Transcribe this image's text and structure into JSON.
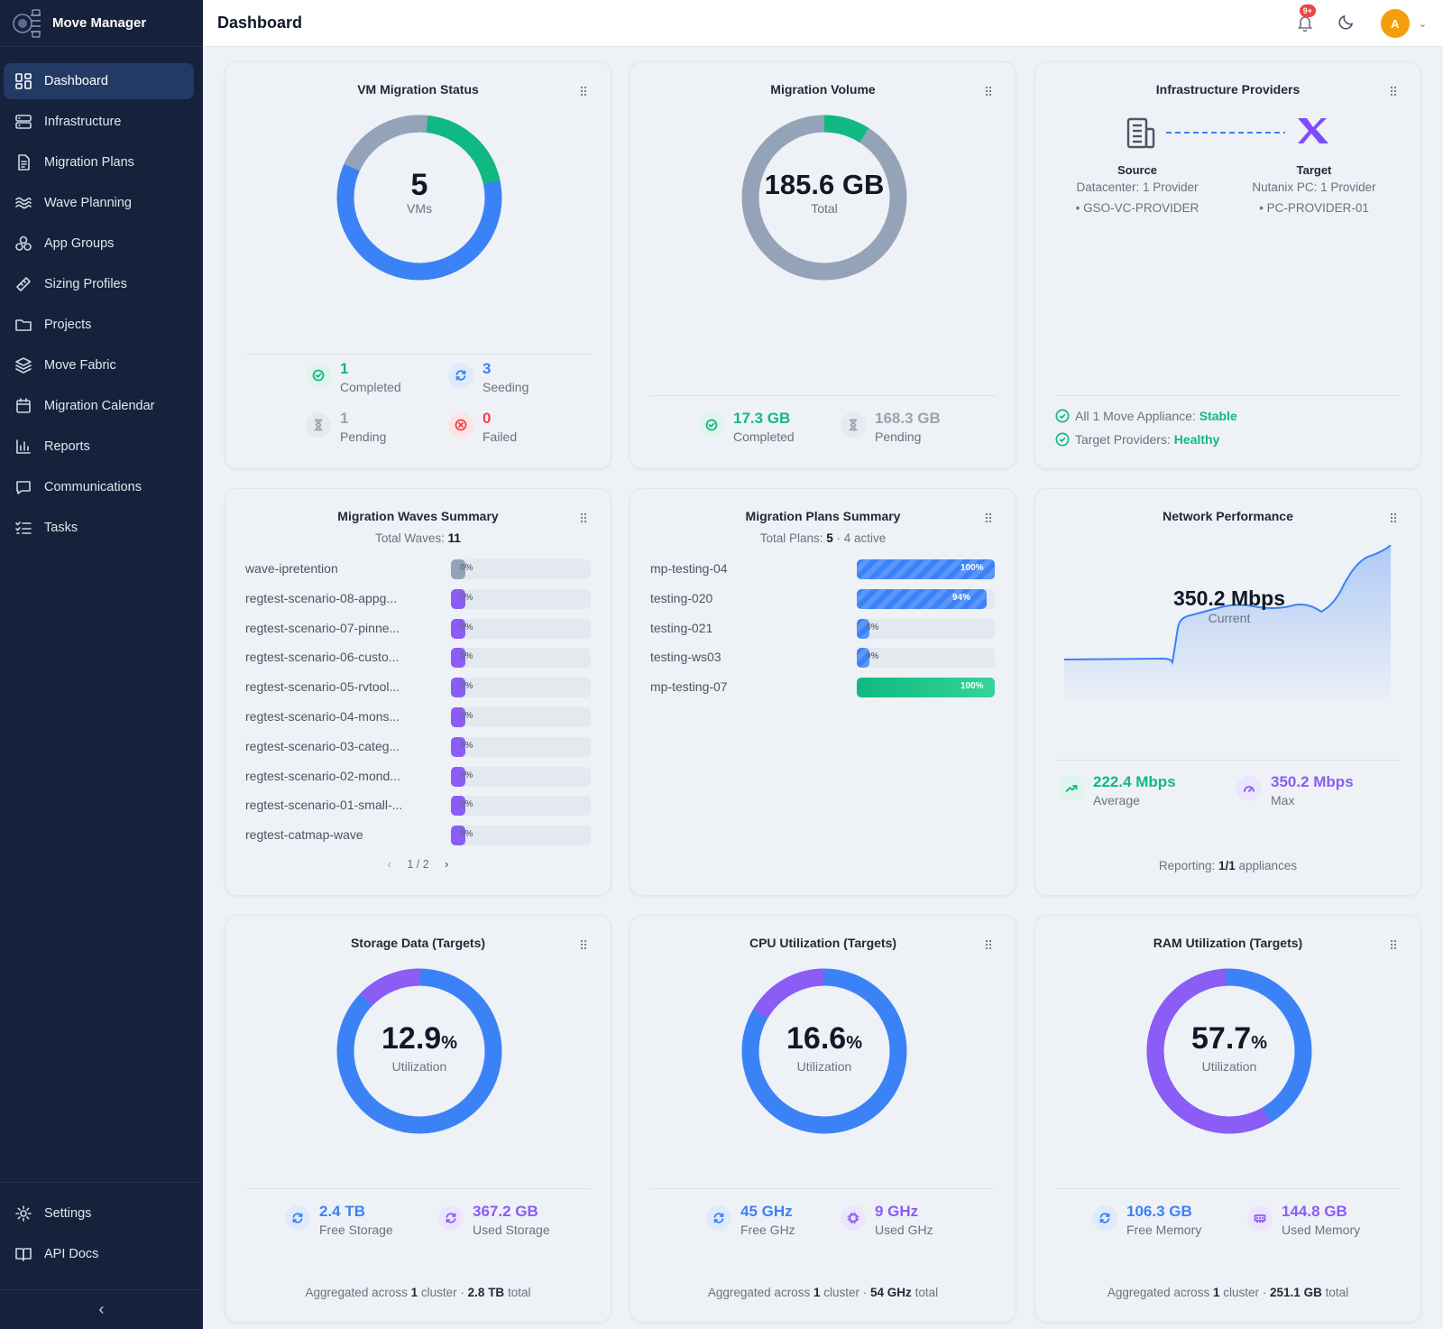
{
  "app": {
    "name": "Move Manager"
  },
  "header": {
    "title": "Dashboard",
    "notif_badge": "9+",
    "avatar_initial": "A"
  },
  "sidebar": {
    "items": [
      {
        "label": "Dashboard",
        "icon": "dashboard-icon",
        "active": true
      },
      {
        "label": "Infrastructure",
        "icon": "server-icon"
      },
      {
        "label": "Migration Plans",
        "icon": "document-icon"
      },
      {
        "label": "Wave Planning",
        "icon": "waves-icon"
      },
      {
        "label": "App Groups",
        "icon": "app-groups-icon"
      },
      {
        "label": "Sizing Profiles",
        "icon": "ruler-icon"
      },
      {
        "label": "Projects",
        "icon": "folder-icon"
      },
      {
        "label": "Move Fabric",
        "icon": "layers-icon"
      },
      {
        "label": "Migration Calendar",
        "icon": "calendar-icon"
      },
      {
        "label": "Reports",
        "icon": "bar-chart-icon"
      },
      {
        "label": "Communications",
        "icon": "message-icon"
      },
      {
        "label": "Tasks",
        "icon": "tasks-icon"
      }
    ],
    "bottom": [
      {
        "label": "Settings",
        "icon": "gear-icon"
      },
      {
        "label": "API Docs",
        "icon": "book-icon"
      }
    ]
  },
  "vm_status": {
    "title": "VM Migration Status",
    "total": "5",
    "total_label": "VMs",
    "stats": [
      {
        "value": "1",
        "label": "Completed"
      },
      {
        "value": "3",
        "label": "Seeding"
      },
      {
        "value": "1",
        "label": "Pending"
      },
      {
        "value": "0",
        "label": "Failed"
      }
    ]
  },
  "volume": {
    "title": "Migration Volume",
    "total": "185.6 GB",
    "total_label": "Total",
    "completed": "17.3 GB",
    "completed_label": "Completed",
    "pending": "168.3 GB",
    "pending_label": "Pending"
  },
  "infra": {
    "title": "Infrastructure Providers",
    "source_label": "Source",
    "source_desc": "Datacenter: 1 Provider",
    "source_item": "• GSO-VC-PROVIDER",
    "target_label": "Target",
    "target_desc": "Nutanix PC: 1 Provider",
    "target_item": "• PC-PROVIDER-01",
    "status1_prefix": "All 1 Move Appliance:",
    "status1_value": "Stable",
    "status2_prefix": "Target Providers:",
    "status2_value": "Healthy"
  },
  "waves": {
    "title": "Migration Waves Summary",
    "sub_prefix": "Total Waves:",
    "sub_value": "11",
    "pager": "1 / 2",
    "rows": [
      {
        "name": "wave-ipretention",
        "pct": "0%",
        "progress": 0
      },
      {
        "name": "regtest-scenario-08-appg...",
        "pct": "0%",
        "progress": 0
      },
      {
        "name": "regtest-scenario-07-pinne...",
        "pct": "0%",
        "progress": 0
      },
      {
        "name": "regtest-scenario-06-custo...",
        "pct": "0%",
        "progress": 0
      },
      {
        "name": "regtest-scenario-05-rvtool...",
        "pct": "0%",
        "progress": 0
      },
      {
        "name": "regtest-scenario-04-mons...",
        "pct": "0%",
        "progress": 0
      },
      {
        "name": "regtest-scenario-03-categ...",
        "pct": "0%",
        "progress": 0
      },
      {
        "name": "regtest-scenario-02-mond...",
        "pct": "0%",
        "progress": 0
      },
      {
        "name": "regtest-scenario-01-small-...",
        "pct": "0%",
        "progress": 0
      },
      {
        "name": "regtest-catmap-wave",
        "pct": "0%",
        "progress": 0
      }
    ]
  },
  "plans": {
    "title": "Migration Plans Summary",
    "sub_prefix": "Total Plans:",
    "sub_value": "5",
    "sub_suffix": "· 4 active",
    "rows": [
      {
        "name": "mp-testing-04",
        "pct": "100%",
        "progress": 100
      },
      {
        "name": "testing-020",
        "pct": "94%",
        "progress": 94
      },
      {
        "name": "testing-021",
        "pct": "4%",
        "progress": 4
      },
      {
        "name": "testing-ws03",
        "pct": "0%",
        "progress": 0
      },
      {
        "name": "mp-testing-07",
        "pct": "100%",
        "progress": 100,
        "status": "completed"
      }
    ]
  },
  "network": {
    "title": "Network Performance",
    "current": "350.2 Mbps",
    "current_label": "Current",
    "average": "222.4 Mbps",
    "average_label": "Average",
    "max": "350.2 Mbps",
    "max_label": "Max",
    "reporting_prefix": "Reporting:",
    "reporting_value": "1/1",
    "reporting_suffix": "appliances"
  },
  "storage": {
    "title": "Storage Data (Targets)",
    "value": "12.9",
    "unit": "%",
    "label": "Utilization",
    "free": "2.4 TB",
    "free_label": "Free Storage",
    "used": "367.2 GB",
    "used_label": "Used Storage",
    "foot_prefix": "Aggregated across",
    "foot_clusters": "1",
    "foot_mid": "cluster ·",
    "foot_total": "2.8 TB",
    "foot_suffix": "total"
  },
  "cpu": {
    "title": "CPU Utilization (Targets)",
    "value": "16.6",
    "unit": "%",
    "label": "Utilization",
    "free": "45 GHz",
    "free_label": "Free GHz",
    "used": "9 GHz",
    "used_label": "Used GHz",
    "foot_prefix": "Aggregated across",
    "foot_clusters": "1",
    "foot_mid": "cluster ·",
    "foot_total": "54 GHz",
    "foot_suffix": "total"
  },
  "ram": {
    "title": "RAM Utilization (Targets)",
    "value": "57.7",
    "unit": "%",
    "label": "Utilization",
    "free": "106.3 GB",
    "free_label": "Free Memory",
    "used": "144.8 GB",
    "used_label": "Used Memory",
    "foot_prefix": "Aggregated across",
    "foot_clusters": "1",
    "foot_mid": "cluster ·",
    "foot_total": "251.1 GB",
    "foot_suffix": "total"
  },
  "colors": {
    "sidebar_bg": "#16213b",
    "accent_blue": "#3b82f6",
    "green": "#10b981",
    "gray": "#94a3b8",
    "purple": "#8b5cf6",
    "red": "#ef4444"
  }
}
